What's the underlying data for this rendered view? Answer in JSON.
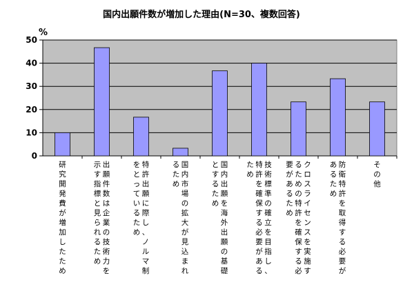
{
  "chart_data": {
    "type": "bar",
    "title": "国内出願件数が増加した理由(N=30、複数回答)",
    "unit": "%",
    "ylim": [
      0,
      50
    ],
    "yticks": [
      0,
      10,
      20,
      30,
      40,
      50
    ],
    "grid": true,
    "bar_color": "#9999ff",
    "plot_bg": "#c0c0c0",
    "categories": [
      [
        "研究開発費が増加したため"
      ],
      [
        "出願件数は企業の技術力を",
        "示す指標と見られるため"
      ],
      [
        "特許出願に際し、ノルマ制",
        "をとっているため"
      ],
      [
        "国内市場の拡大が見込まれ",
        "るため"
      ],
      [
        "国内出願を海外出願の基礎",
        "とするため"
      ],
      [
        "技術標準の確立を目指し、",
        "特許を確保する必要がある",
        "ため"
      ],
      [
        "クロスライセンスを実施す",
        "るための特許を確保する必",
        "要があるため"
      ],
      [
        "防衛特許を取得する必要が",
        "あるため"
      ],
      [
        "その他"
      ]
    ],
    "values": [
      10,
      46.7,
      16.7,
      3.3,
      36.7,
      40,
      23.3,
      33.3,
      23.3
    ]
  }
}
